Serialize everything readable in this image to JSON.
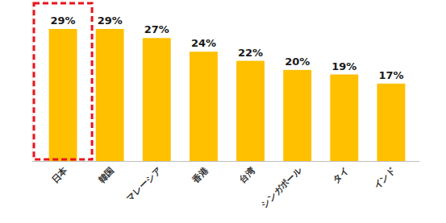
{
  "chart_data": {
    "type": "bar",
    "categories": [
      "日本",
      "韓国",
      "マレーシア",
      "香港",
      "台湾",
      "シンガポール",
      "タイ",
      "インド"
    ],
    "values": [
      29,
      29,
      27,
      24,
      22,
      20,
      19,
      17
    ],
    "value_labels": [
      "29%",
      "29%",
      "27%",
      "24%",
      "22%",
      "20%",
      "19%",
      "17%"
    ],
    "color": "#ffc000",
    "ylim": [
      0,
      35
    ],
    "grid": false,
    "data_labels": true,
    "tick_labels": "x"
  }
}
